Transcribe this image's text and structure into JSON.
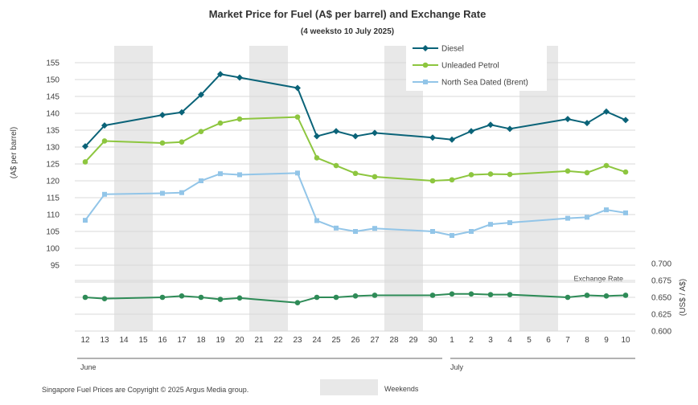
{
  "chart_data": {
    "type": "line",
    "title": "Market Price for Fuel (A$ per barrel) and Exchange Rate",
    "subtitle": "(4 weeksto 10 July 2025)",
    "ylabel": "(A$ per barrel)",
    "y2label": "(US$ / A$)",
    "ylim": [
      90,
      155
    ],
    "y_ticks": [
      95,
      100,
      105,
      110,
      115,
      120,
      125,
      130,
      135,
      140,
      145,
      150,
      155
    ],
    "y2lim": [
      0.6,
      0.7
    ],
    "y2_ticks": [
      "0.600",
      "0.625",
      "0.650",
      "0.675",
      "0.700"
    ],
    "categories": [
      "12",
      "13",
      "14",
      "15",
      "16",
      "17",
      "18",
      "19",
      "20",
      "21",
      "22",
      "23",
      "24",
      "25",
      "26",
      "27",
      "28",
      "29",
      "30",
      "1",
      "2",
      "3",
      "4",
      "5",
      "6",
      "7",
      "8",
      "9",
      "10"
    ],
    "month_labels": [
      "June",
      "July"
    ],
    "weekend_ranges": [
      [
        "14",
        "15"
      ],
      [
        "21",
        "22"
      ],
      [
        "28",
        "29"
      ],
      [
        "5",
        "6"
      ]
    ],
    "weekend_label": "Weekends",
    "series": [
      {
        "name": "Diesel",
        "color": "#0a6378",
        "marker": "diamond",
        "values": [
          130.2,
          136.4,
          null,
          null,
          139.5,
          140.3,
          145.5,
          151.6,
          150.6,
          null,
          null,
          147.5,
          133.2,
          134.7,
          133.2,
          134.2,
          null,
          null,
          132.8,
          132.2,
          134.7,
          136.6,
          135.4,
          null,
          null,
          138.3,
          137.1,
          140.5,
          138.0
        ]
      },
      {
        "name": "Unleaded Petrol",
        "color": "#8dc63f",
        "marker": "circle",
        "values": [
          125.6,
          131.8,
          null,
          null,
          131.2,
          131.5,
          134.6,
          137.1,
          138.3,
          null,
          null,
          138.9,
          126.8,
          124.5,
          122.2,
          121.2,
          null,
          null,
          120.0,
          120.3,
          121.8,
          122.0,
          121.9,
          null,
          null,
          122.9,
          122.4,
          124.5,
          122.6
        ]
      },
      {
        "name": "North Sea Dated (Brent)",
        "color": "#92c5e8",
        "marker": "square",
        "values": [
          108.3,
          116.0,
          null,
          null,
          116.3,
          116.5,
          120.0,
          122.1,
          121.8,
          null,
          null,
          122.3,
          108.2,
          106.0,
          105.0,
          105.9,
          null,
          null,
          105.0,
          103.8,
          105.0,
          107.1,
          107.6,
          null,
          null,
          108.9,
          109.2,
          111.4,
          110.5
        ]
      }
    ],
    "exchange_rate": {
      "name": "Exchange Rate",
      "color": "#2e8b57",
      "marker": "circle",
      "values": [
        0.65,
        0.648,
        null,
        null,
        0.65,
        0.652,
        0.65,
        0.647,
        0.649,
        null,
        null,
        0.642,
        0.65,
        0.65,
        0.652,
        0.653,
        null,
        null,
        0.653,
        0.655,
        0.655,
        0.654,
        0.654,
        null,
        null,
        0.65,
        0.653,
        0.652,
        0.653
      ]
    },
    "footnote": "Singapore Fuel Prices are Copyright © 2025 Argus Media group."
  }
}
